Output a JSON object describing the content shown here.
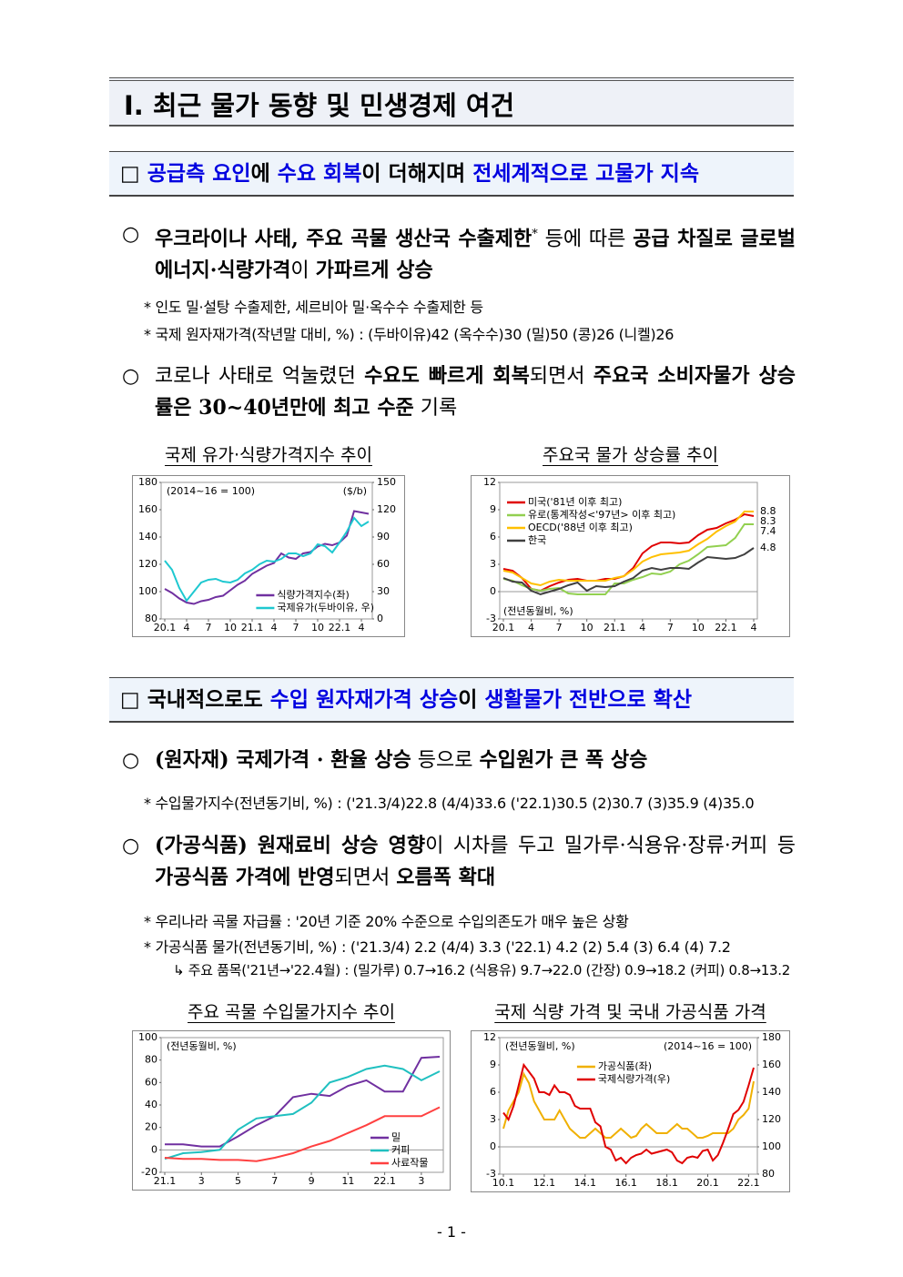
{
  "header": {
    "title": "Ⅰ. 최근 물가 동향 및 민생경제 여건"
  },
  "sections": [
    {
      "heading": [
        "□",
        "공급측 요인",
        "에 ",
        "수요 회복",
        "이 더해지며 ",
        "전세계적으로 고물가 지속"
      ],
      "bullets": [
        {
          "marker": "○",
          "segments": [
            "우크라이나 사태, 주요 곡물 생산국 수출제한",
            "*",
            " 등에 따른 ",
            "공급 차질로 글로벌 에너지·식량가격",
            "이 ",
            "가파르게 상승"
          ],
          "notes": [
            "* 인도 밀·설탕 수출제한, 세르비아 밀·옥수수 수출제한 등",
            "* 국제 원자재가격(작년말 대비, %) : (두바이유)42 (옥수수)30 (밀)50 (콩)26 (니켈)26"
          ]
        },
        {
          "marker": "○",
          "segments": [
            "코로나 사태로 억눌렸던 ",
            "수요도 빠르게 회복",
            "되면서 ",
            "주요국 소비자물가 상승률은 30~40년만에 최고 수준",
            " 기록"
          ],
          "notes": []
        }
      ]
    },
    {
      "heading": [
        "□",
        "국내적으로도 ",
        "수입 원자재가격 상승",
        "이 ",
        "생활물가 전반으로 확산"
      ],
      "bullets": [
        {
          "marker": "○",
          "segments": [
            "(원자재) 국제가격 · 환율 상승",
            " 등으로 ",
            "수입원가 큰 폭 상승"
          ],
          "notes": [
            "* 수입물가지수(전년동기비, %) : ('21.3/4)22.8 (4/4)33.6 ('22.1)30.5 (2)30.7 (3)35.9 (4)35.0"
          ]
        },
        {
          "marker": "○",
          "segments": [
            "(가공식품) 원재료비 상승 영향",
            "이 시차를 두고 밀가루·식용유·장류·커피 등 ",
            "가공식품 가격에 반영",
            "되면서 ",
            "오름폭 확대"
          ],
          "notes": [
            "* 우리나라 곡물 자급률 : '20년 기준 20% 수준으로 수입의존도가 매우 높은 상황",
            "* 가공식품 물가(전년동기비, %) : ('21.3/4) 2.2 (4/4) 3.3 ('22.1) 4.2 (2) 5.4 (3) 6.4 (4) 7.2",
            "↳ 주요 품목('21년→'22.4월) : (밀가루) 0.7→16.2 (식용유) 9.7→22.0 (간장) 0.9→18.2 (커피) 0.8→13.2"
          ]
        }
      ]
    }
  ],
  "charts": [
    {
      "type": "line",
      "title": "국제 유가·식량가격지수 추이",
      "annotations": [
        {
          "text": "(2014~16 = 100)",
          "corner": "upper left"
        },
        {
          "text": "($/b)",
          "corner": "upper right"
        }
      ],
      "categories": [
        "20.1",
        null,
        null,
        "4",
        null,
        null,
        "7",
        null,
        null,
        "10",
        null,
        null,
        "21.1",
        null,
        null,
        "4",
        null,
        null,
        "7",
        null,
        null,
        "10",
        null,
        null,
        "22.1",
        null,
        null,
        "4",
        null
      ],
      "ylim": [
        80,
        180
      ],
      "yticks": [
        80,
        100,
        120,
        140,
        160,
        180
      ],
      "y2lim": [
        0,
        150
      ],
      "y2ticks": [
        0,
        30,
        60,
        90,
        120,
        150
      ],
      "legend": "lower center",
      "series": [
        {
          "name": "식량가격지수(좌)",
          "color": "#7030a0",
          "values": [
            102,
            99,
            95,
            92,
            91,
            93,
            94,
            96,
            97,
            101,
            105,
            108,
            113,
            116,
            119,
            121,
            128,
            125,
            124,
            128,
            129,
            133,
            135,
            134,
            136,
            141,
            159,
            158,
            157
          ]
        },
        {
          "name": "국제유가(두바이유, 우)",
          "color": "#1ec8d0",
          "axis": "y2",
          "values": [
            64,
            54,
            34,
            20,
            30,
            40,
            43,
            44,
            41,
            40,
            43,
            50,
            54,
            60,
            64,
            63,
            66,
            72,
            72,
            69,
            72,
            82,
            80,
            73,
            84,
            96,
            111,
            102,
            107
          ]
        }
      ]
    },
    {
      "type": "line",
      "title": "주요국 물가 상승률 추이",
      "end_labels": true,
      "annotations": [
        {
          "text": "(전년동월비, %)",
          "corner": "lower left"
        }
      ],
      "categories": [
        "20.1",
        null,
        null,
        "4",
        null,
        null,
        "7",
        null,
        null,
        "10",
        null,
        null,
        "21.1",
        null,
        null,
        "4",
        null,
        null,
        "7",
        null,
        null,
        "10",
        null,
        null,
        "22.1",
        null,
        null,
        "4"
      ],
      "ylim": [
        -3,
        12
      ],
      "yticks": [
        -3,
        0,
        3,
        6,
        9,
        12
      ],
      "legend": "upper left",
      "series": [
        {
          "name": "미국('81년 이후 최고)",
          "color": "#e00000",
          "values": [
            2.5,
            2.3,
            1.5,
            0.3,
            0.1,
            0.6,
            1.0,
            1.3,
            1.4,
            1.2,
            1.2,
            1.4,
            1.4,
            1.7,
            2.6,
            4.2,
            5.0,
            5.4,
            5.4,
            5.3,
            5.4,
            6.2,
            6.8,
            7.0,
            7.5,
            7.9,
            8.5,
            8.3
          ]
        },
        {
          "name": "유로(통계작성<'97년> 이후 최고)",
          "color": "#92d050",
          "values": [
            1.4,
            1.2,
            0.7,
            0.3,
            0.1,
            0.3,
            0.4,
            -0.2,
            -0.3,
            -0.3,
            -0.3,
            -0.3,
            0.9,
            0.9,
            1.3,
            1.6,
            2.0,
            1.9,
            2.2,
            3.0,
            3.4,
            4.1,
            4.9,
            5.0,
            5.1,
            5.9,
            7.4,
            7.4
          ]
        },
        {
          "name": "OECD('88년 이후 최고)",
          "color": "#ffc000",
          "values": [
            2.3,
            2.1,
            1.5,
            0.9,
            0.7,
            1.1,
            1.3,
            1.2,
            1.2,
            1.2,
            1.2,
            1.2,
            1.5,
            1.7,
            2.4,
            3.3,
            3.8,
            4.1,
            4.2,
            4.3,
            4.5,
            5.2,
            5.8,
            6.6,
            7.2,
            7.7,
            8.8,
            8.8
          ]
        },
        {
          "name": "한국",
          "color": "#404040",
          "values": [
            1.5,
            1.1,
            1.0,
            0.1,
            -0.3,
            0.0,
            0.3,
            0.7,
            1.0,
            0.1,
            0.6,
            0.5,
            0.6,
            1.1,
            1.5,
            2.3,
            2.6,
            2.4,
            2.6,
            2.6,
            2.5,
            3.2,
            3.8,
            3.7,
            3.6,
            3.7,
            4.1,
            4.8
          ]
        }
      ]
    },
    {
      "type": "line",
      "title": "주요 곡물 수입물가지수 추이",
      "annotations": [
        {
          "text": "(전년동월비, %)",
          "corner": "upper left"
        }
      ],
      "categories": [
        "21.1",
        null,
        "3",
        null,
        "5",
        null,
        "7",
        null,
        "9",
        null,
        "11",
        null,
        "22.1",
        null,
        "3",
        null
      ],
      "ylim": [
        -20,
        100
      ],
      "yticks": [
        -20,
        0,
        20,
        40,
        60,
        80,
        100
      ],
      "legend": "lower right",
      "series": [
        {
          "name": "밀",
          "color": "#7030a0",
          "values": [
            5,
            5,
            3,
            3,
            12,
            22,
            30,
            47,
            50,
            48,
            57,
            62,
            52,
            52,
            82,
            83
          ]
        },
        {
          "name": "커피",
          "color": "#20c0c0",
          "values": [
            -8,
            -3,
            -2,
            0,
            18,
            28,
            30,
            32,
            42,
            60,
            65,
            72,
            75,
            72,
            62,
            70
          ]
        },
        {
          "name": "사료작물",
          "color": "#ff4040",
          "values": [
            -7,
            -8,
            -8,
            -9,
            -9,
            -10,
            -7,
            -3,
            3,
            8,
            15,
            22,
            30,
            30,
            30,
            38
          ]
        }
      ]
    },
    {
      "type": "line",
      "title": "국제 식량 가격 및 국내 가공식품 가격",
      "annotations": [
        {
          "text": "(전년동월비, %)",
          "corner": "upper left"
        },
        {
          "text": "(2014~16 = 100)",
          "corner": "upper right"
        }
      ],
      "categories": [
        "10.1",
        null,
        null,
        null,
        null,
        null,
        null,
        null,
        "12.1",
        null,
        null,
        null,
        null,
        null,
        null,
        null,
        "14.1",
        null,
        null,
        null,
        null,
        null,
        null,
        null,
        "16.1",
        null,
        null,
        null,
        null,
        null,
        null,
        null,
        "18.1",
        null,
        null,
        null,
        null,
        null,
        null,
        null,
        "20.1",
        null,
        null,
        null,
        null,
        null,
        null,
        null,
        "22.1",
        null
      ],
      "ylim": [
        -3,
        12
      ],
      "yticks": [
        -3,
        0,
        3,
        6,
        9,
        12
      ],
      "y2lim": [
        80,
        180
      ],
      "y2ticks": [
        80,
        100,
        120,
        140,
        160,
        180
      ],
      "legend": "upper center",
      "series": [
        {
          "name": "가공식품(좌)",
          "color": "#f0b000",
          "values": [
            2,
            4,
            5,
            6,
            8,
            7,
            5,
            4,
            3,
            3,
            3,
            4,
            3,
            2,
            1.5,
            1,
            1,
            1.5,
            2,
            1.5,
            1,
            1,
            1.5,
            2,
            1.5,
            1,
            1.2,
            2,
            2.5,
            2,
            1.5,
            1.5,
            1.5,
            2,
            2.5,
            2,
            2,
            1.5,
            1,
            1,
            1.2,
            1.5,
            1.5,
            1.5,
            1.5,
            2,
            3,
            3.5,
            4.2,
            7.2
          ]
        },
        {
          "name": "국제식량가격(우)",
          "color": "#e00000",
          "axis": "y2",
          "values": [
            125,
            120,
            130,
            145,
            160,
            155,
            150,
            140,
            140,
            138,
            145,
            140,
            140,
            138,
            130,
            128,
            128,
            128,
            118,
            115,
            100,
            98,
            90,
            92,
            88,
            92,
            94,
            95,
            98,
            95,
            96,
            97,
            98,
            96,
            90,
            88,
            92,
            93,
            92,
            97,
            98,
            90,
            94,
            103,
            113,
            124,
            127,
            133,
            145,
            158
          ]
        }
      ]
    }
  ],
  "footer": "- 1 -"
}
